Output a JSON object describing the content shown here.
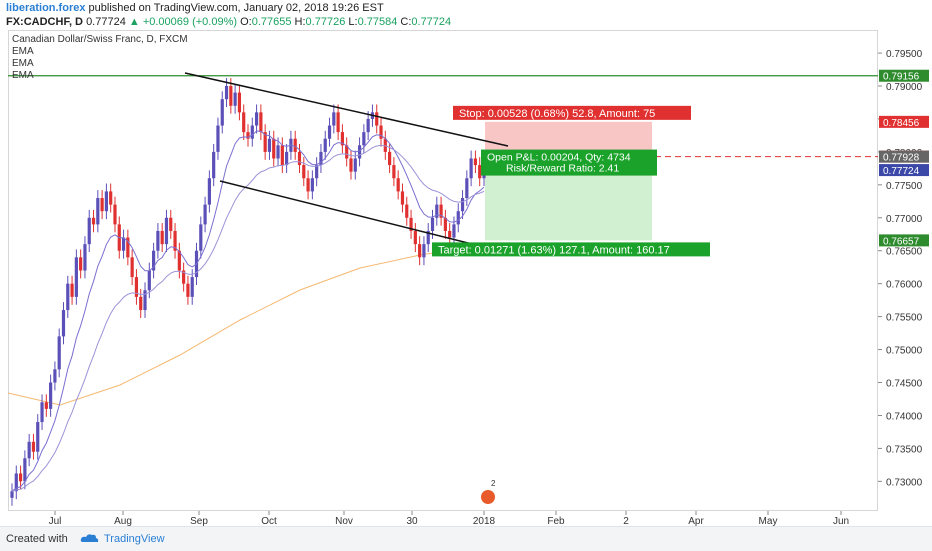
{
  "header": {
    "brand": "liberation.forex",
    "published": "published on TradingView.com, January 02, 2018 19:26 EST",
    "symbol": "FX:CADCHF, D",
    "last": "0.77724",
    "change": "▲ +0.00069 (+0.09%)",
    "o_label": "O:",
    "o_value": "0.77655",
    "h_label": "H:",
    "h_value": "0.77726",
    "l_label": "L:",
    "l_value": "0.77584",
    "c_label": "C:",
    "c_value": "0.77724"
  },
  "legend": {
    "title": "Canadian Dollar/Swiss Franc, D, FXCM",
    "ema1": "EMA",
    "ema2": "EMA",
    "ema3": "EMA"
  },
  "footer": {
    "created": "Created with",
    "brand": "TradingView"
  },
  "chart_data": {
    "type": "candlestick",
    "ylim": [
      0.7255,
      0.7985
    ],
    "y_ticks": [
      "0.79500",
      "0.79000",
      "0.78500",
      "0.78000",
      "0.77500",
      "0.77000",
      "0.76500",
      "0.76000",
      "0.75500",
      "0.75000",
      "0.74500",
      "0.74000",
      "0.73500",
      "0.73000"
    ],
    "x_ticks": [
      "Jul",
      "Aug",
      "Sep",
      "Oct",
      "Nov",
      "30",
      "2018",
      "Feb",
      "2",
      "Apr",
      "May",
      "Jun"
    ],
    "price_labels": [
      {
        "value": "0.79156",
        "color": "#2e8b2e"
      },
      {
        "value": "0.78456",
        "color": "#e03030"
      },
      {
        "value": "0.77929",
        "color": "#e03030"
      },
      {
        "value": "0.77928",
        "color": "#666666"
      },
      {
        "value": "0.77724",
        "color": "#3b48a8"
      },
      {
        "value": "0.76657",
        "color": "#2e8b2e"
      }
    ],
    "horizontal_line": 0.79156,
    "entry_level": 0.77929,
    "stop_level": 0.78456,
    "target_level": 0.76657,
    "stop_text": "Stop: 0.00528 (0.68%) 52.8, Amount: 75",
    "pnl_text": "Open P&L: 0.00204, Qty: 4734",
    "rr_text": "Risk/Reward Ratio: 2.41",
    "target_text": "Target: 0.01271 (1.63%) 127.1, Amount: 160.17",
    "logo_text": "2",
    "closes": [
      0.7285,
      0.7312,
      0.73,
      0.7335,
      0.736,
      0.7345,
      0.739,
      0.742,
      0.741,
      0.745,
      0.747,
      0.752,
      0.756,
      0.76,
      0.758,
      0.764,
      0.762,
      0.766,
      0.77,
      0.769,
      0.773,
      0.771,
      0.774,
      0.772,
      0.769,
      0.765,
      0.767,
      0.764,
      0.761,
      0.758,
      0.756,
      0.759,
      0.762,
      0.765,
      0.768,
      0.766,
      0.77,
      0.768,
      0.765,
      0.762,
      0.76,
      0.758,
      0.761,
      0.765,
      0.769,
      0.772,
      0.776,
      0.78,
      0.784,
      0.788,
      0.79,
      0.787,
      0.789,
      0.786,
      0.783,
      0.782,
      0.784,
      0.786,
      0.783,
      0.78,
      0.782,
      0.779,
      0.781,
      0.778,
      0.78,
      0.782,
      0.78,
      0.778,
      0.776,
      0.774,
      0.776,
      0.778,
      0.78,
      0.782,
      0.784,
      0.786,
      0.783,
      0.781,
      0.779,
      0.777,
      0.779,
      0.781,
      0.783,
      0.785,
      0.786,
      0.784,
      0.782,
      0.78,
      0.778,
      0.776,
      0.774,
      0.772,
      0.77,
      0.768,
      0.766,
      0.764,
      0.766,
      0.768,
      0.77,
      0.772,
      0.77,
      0.768,
      0.767,
      0.769,
      0.771,
      0.773,
      0.776,
      0.779,
      0.778,
      0.776,
      0.7772
    ]
  }
}
